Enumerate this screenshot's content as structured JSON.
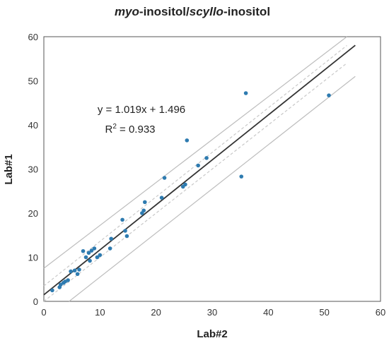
{
  "chart_data": {
    "type": "scatter",
    "title_parts": [
      {
        "text": "myo",
        "italic": true
      },
      {
        "text": "-inositol/",
        "italic": false
      },
      {
        "text": "scyllo",
        "italic": true
      },
      {
        "text": "-inositol",
        "italic": false
      }
    ],
    "xlabel": "Lab#2",
    "ylabel": "Lab#1",
    "xlim": [
      0,
      60
    ],
    "ylim": [
      0,
      60
    ],
    "xticks": [
      "0",
      "10",
      "20",
      "30",
      "40",
      "50",
      "60"
    ],
    "yticks": [
      "0",
      "10",
      "20",
      "30",
      "40",
      "50",
      "60"
    ],
    "grid": false,
    "equation": "y = 1.019x + 1.496",
    "r2_text": "R",
    "r2_sup": "2",
    "r2_value": " = 0.933",
    "regression": {
      "slope": 1.019,
      "intercept": 1.496,
      "x_range": [
        0,
        55.5
      ]
    },
    "upper_bound_line": {
      "points": [
        [
          0,
          7.5
        ],
        [
          54,
          60
        ]
      ]
    },
    "lower_bound_line": {
      "points": [
        [
          4.5,
          0
        ],
        [
          55.5,
          51
        ]
      ]
    },
    "confidence_upper": {
      "points": [
        [
          0,
          3.5
        ],
        [
          54,
          58
        ]
      ]
    },
    "confidence_lower": {
      "points": [
        [
          0,
          0.0
        ],
        [
          54,
          54
        ]
      ]
    },
    "points": [
      {
        "x": 1.5,
        "y": 2.5
      },
      {
        "x": 2.8,
        "y": 3.2
      },
      {
        "x": 3.0,
        "y": 3.8
      },
      {
        "x": 3.5,
        "y": 4.2
      },
      {
        "x": 3.8,
        "y": 4.5
      },
      {
        "x": 4.3,
        "y": 4.8
      },
      {
        "x": 4.8,
        "y": 6.8
      },
      {
        "x": 5.5,
        "y": 7.0
      },
      {
        "x": 6.0,
        "y": 6.2
      },
      {
        "x": 6.3,
        "y": 7.2
      },
      {
        "x": 7.0,
        "y": 11.4
      },
      {
        "x": 7.5,
        "y": 10.0
      },
      {
        "x": 8.0,
        "y": 11.0
      },
      {
        "x": 8.2,
        "y": 9.2
      },
      {
        "x": 8.5,
        "y": 11.5
      },
      {
        "x": 9.0,
        "y": 12.0
      },
      {
        "x": 9.5,
        "y": 10.0
      },
      {
        "x": 10.0,
        "y": 10.5
      },
      {
        "x": 11.8,
        "y": 12.0
      },
      {
        "x": 12.0,
        "y": 14.2
      },
      {
        "x": 14.0,
        "y": 18.5
      },
      {
        "x": 14.5,
        "y": 16.0
      },
      {
        "x": 14.8,
        "y": 14.8
      },
      {
        "x": 17.5,
        "y": 20.0
      },
      {
        "x": 17.8,
        "y": 20.6
      },
      {
        "x": 18.0,
        "y": 22.5
      },
      {
        "x": 21.0,
        "y": 23.5
      },
      {
        "x": 21.5,
        "y": 28.0
      },
      {
        "x": 24.8,
        "y": 26.0
      },
      {
        "x": 25.2,
        "y": 26.5
      },
      {
        "x": 25.5,
        "y": 36.5
      },
      {
        "x": 27.5,
        "y": 30.8
      },
      {
        "x": 29.0,
        "y": 32.5
      },
      {
        "x": 35.2,
        "y": 28.3
      },
      {
        "x": 36.0,
        "y": 47.2
      },
      {
        "x": 50.8,
        "y": 46.7
      }
    ],
    "colors": {
      "points": "#2e7bb0",
      "regression": "#333333",
      "bounds": "#bdbdbd",
      "confidence": "#c8c8c8",
      "axis": "#555555"
    }
  }
}
